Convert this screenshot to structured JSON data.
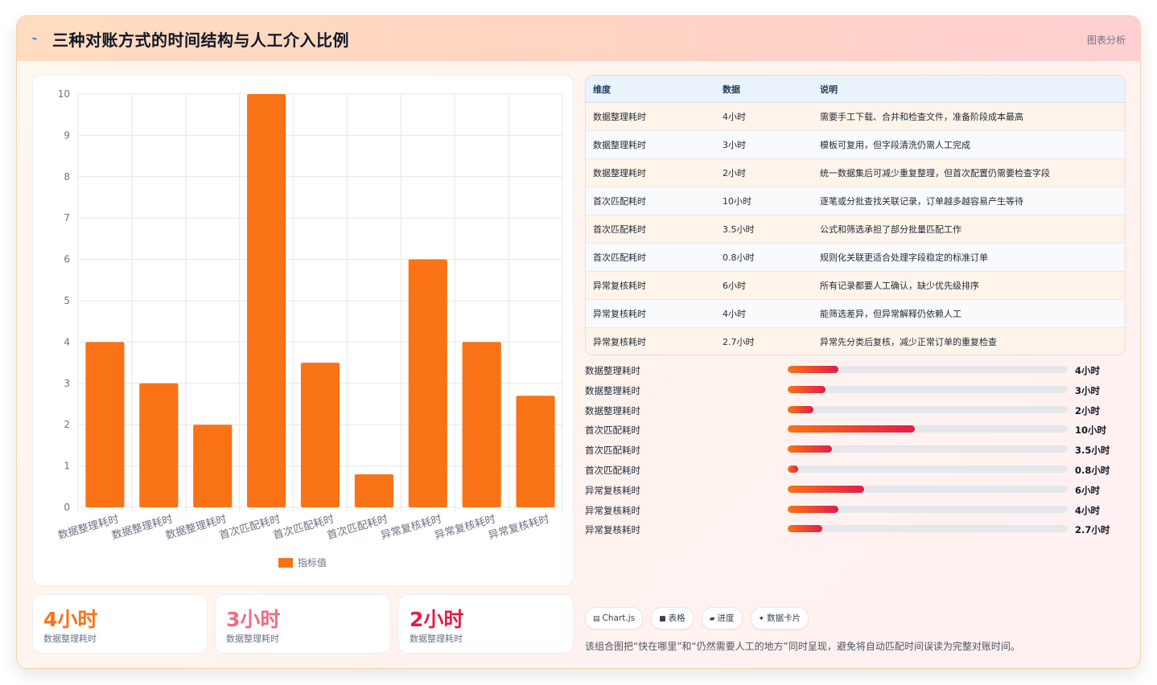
{
  "header": {
    "icon": "chart-icon",
    "title": "三种对账方式的时间结构与人工介入比例",
    "right_label": "图表分析"
  },
  "chart_data": {
    "type": "bar",
    "categories": [
      "数据整理耗时",
      "数据整理耗时",
      "数据整理耗时",
      "首次匹配耗时",
      "首次匹配耗时",
      "首次匹配耗时",
      "异常复核耗时",
      "异常复核耗时",
      "异常复核耗时"
    ],
    "series": [
      {
        "name": "指标值",
        "values": [
          4,
          3,
          2,
          10,
          3.5,
          0.8,
          6,
          4,
          2.7
        ],
        "color": "#f97316"
      }
    ],
    "ylim": [
      0,
      10
    ],
    "yticks": [
      "0",
      "1",
      "2",
      "3",
      "4",
      "5",
      "6",
      "7",
      "8",
      "9",
      "10"
    ],
    "grid": true,
    "legend": "bottom"
  },
  "kpis": [
    {
      "value": "4小时",
      "label": "数据整理耗时",
      "color": "#f97316"
    },
    {
      "value": "3小时",
      "label": "数据整理耗时",
      "color": "#f06b84"
    },
    {
      "value": "2小时",
      "label": "数据整理耗时",
      "color": "#e11d48"
    }
  ],
  "table": {
    "headers": [
      "维度",
      "数据",
      "说明"
    ],
    "rows": [
      [
        "数据整理耗时",
        "4小时",
        "需要手工下载、合并和检查文件，准备阶段成本最高"
      ],
      [
        "数据整理耗时",
        "3小时",
        "模板可复用，但字段清洗仍需人工完成"
      ],
      [
        "数据整理耗时",
        "2小时",
        "统一数据集后可减少重复整理，但首次配置仍需要检查字段"
      ],
      [
        "首次匹配耗时",
        "10小时",
        "逐笔或分批查找关联记录，订单越多越容易产生等待"
      ],
      [
        "首次匹配耗时",
        "3.5小时",
        "公式和筛选承担了部分批量匹配工作"
      ],
      [
        "首次匹配耗时",
        "0.8小时",
        "规则化关联更适合处理字段稳定的标准订单"
      ],
      [
        "异常复核耗时",
        "6小时",
        "所有记录都要人工确认，缺少优先级排序"
      ],
      [
        "异常复核耗时",
        "4小时",
        "能筛选差异，但异常解释仍依赖人工"
      ],
      [
        "异常复核耗时",
        "2.7小时",
        "异常先分类后复核，减少正常订单的重复检查"
      ]
    ]
  },
  "progress": {
    "max": 22,
    "items": [
      {
        "label": "数据整理耗时",
        "value": 4,
        "text": "4小时"
      },
      {
        "label": "数据整理耗时",
        "value": 3,
        "text": "3小时"
      },
      {
        "label": "数据整理耗时",
        "value": 2,
        "text": "2小时"
      },
      {
        "label": "首次匹配耗时",
        "value": 10,
        "text": "10小时"
      },
      {
        "label": "首次匹配耗时",
        "value": 3.5,
        "text": "3.5小时"
      },
      {
        "label": "首次匹配耗时",
        "value": 0.8,
        "text": "0.8小时"
      },
      {
        "label": "异常复核耗时",
        "value": 6,
        "text": "6小时"
      },
      {
        "label": "异常复核耗时",
        "value": 4,
        "text": "4小时"
      },
      {
        "label": "异常复核耗时",
        "value": 2.7,
        "text": "2.7小时"
      }
    ]
  },
  "chips": [
    {
      "icon": "▤",
      "label": "Chart.js"
    },
    {
      "icon": "■",
      "label": "表格"
    },
    {
      "icon": "▰",
      "label": "进度"
    },
    {
      "icon": "✦",
      "label": "数据卡片"
    }
  ],
  "note": "该组合图把“快在哪里”和“仍然需要人工的地方”同时呈现，避免将自动匹配时间误读为完整对账时间。"
}
